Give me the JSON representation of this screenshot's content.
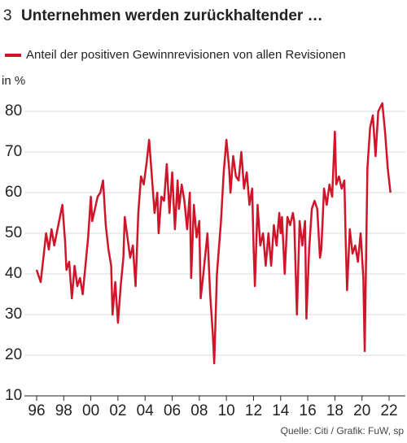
{
  "chart_data": {
    "type": "line",
    "number": "3",
    "title": "Unternehmen werden zurückhaltender …",
    "y_label": "in %",
    "source": "Quelle: Citi / Grafik: FuW, sp",
    "grid": true,
    "xlim": [
      1995.1,
      2023.2
    ],
    "ylim": [
      10,
      85
    ],
    "yticks": [
      10,
      20,
      30,
      40,
      50,
      60,
      70,
      80
    ],
    "xticks": [
      {
        "value": 1996,
        "label": "96"
      },
      {
        "value": 1998,
        "label": "98"
      },
      {
        "value": 2000,
        "label": "00"
      },
      {
        "value": 2002,
        "label": "02"
      },
      {
        "value": 2004,
        "label": "04"
      },
      {
        "value": 2006,
        "label": "06"
      },
      {
        "value": 2008,
        "label": "08"
      },
      {
        "value": 2010,
        "label": "10"
      },
      {
        "value": 2012,
        "label": "12"
      },
      {
        "value": 2014,
        "label": "14"
      },
      {
        "value": 2016,
        "label": "16"
      },
      {
        "value": 2018,
        "label": "18"
      },
      {
        "value": 2020,
        "label": "20"
      },
      {
        "value": 2022,
        "label": "22"
      }
    ],
    "x": [
      1996.0,
      1996.3,
      1996.7,
      1996.9,
      1997.1,
      1997.3,
      1997.6,
      1997.9,
      1998.1,
      1998.2,
      1998.4,
      1998.6,
      1998.8,
      1999.0,
      1999.2,
      1999.4,
      1999.6,
      1999.8,
      2000.0,
      2000.1,
      2000.3,
      2000.5,
      2000.7,
      2000.9,
      2001.1,
      2001.3,
      2001.5,
      2001.6,
      2001.8,
      2002.0,
      2002.2,
      2002.4,
      2002.5,
      2002.7,
      2002.9,
      2003.1,
      2003.3,
      2003.5,
      2003.7,
      2003.9,
      2004.1,
      2004.3,
      2004.5,
      2004.7,
      2004.9,
      2005.0,
      2005.2,
      2005.4,
      2005.6,
      2005.8,
      2006.0,
      2006.2,
      2006.4,
      2006.5,
      2006.7,
      2006.9,
      2007.1,
      2007.3,
      2007.4,
      2007.6,
      2007.8,
      2008.0,
      2008.1,
      2008.3,
      2008.6,
      2008.8,
      2009.0,
      2009.1,
      2009.3,
      2009.6,
      2009.8,
      2010.0,
      2010.2,
      2010.3,
      2010.5,
      2010.7,
      2010.9,
      2011.1,
      2011.3,
      2011.5,
      2011.7,
      2011.9,
      2012.0,
      2012.1,
      2012.3,
      2012.5,
      2012.7,
      2012.9,
      2013.1,
      2013.3,
      2013.5,
      2013.7,
      2013.9,
      2014.0,
      2014.1,
      2014.3,
      2014.5,
      2014.7,
      2014.9,
      2015.0,
      2015.2,
      2015.4,
      2015.6,
      2015.8,
      2015.9,
      2016.1,
      2016.3,
      2016.5,
      2016.7,
      2016.9,
      2017.0,
      2017.2,
      2017.4,
      2017.6,
      2017.8,
      2018.0,
      2018.1,
      2018.3,
      2018.5,
      2018.7,
      2018.8,
      2018.9,
      2019.1,
      2019.3,
      2019.5,
      2019.7,
      2019.9,
      2020.1,
      2020.2,
      2020.4,
      2020.6,
      2020.8,
      2021.0,
      2021.2,
      2021.5,
      2021.7,
      2021.9,
      2022.1
    ],
    "series": [
      {
        "name": "Anteil der positiven Gewinnrevisionen von allen Revisionen",
        "color": "#d0152a",
        "values": [
          41,
          38,
          50,
          46,
          51,
          47,
          52,
          57,
          48,
          41,
          43,
          34,
          42,
          37,
          39,
          35,
          42,
          49,
          59,
          53,
          56,
          59,
          60,
          63,
          52,
          46,
          42,
          30,
          38,
          28,
          37,
          44,
          54,
          49,
          44,
          47,
          37,
          55,
          64,
          62,
          67,
          73,
          64,
          55,
          60,
          50,
          59,
          58,
          67,
          55,
          65,
          51,
          63,
          56,
          62,
          58,
          51,
          60,
          39,
          57,
          49,
          53,
          34,
          40,
          50,
          35,
          25,
          18,
          40,
          53,
          65,
          73,
          66,
          60,
          69,
          64,
          63,
          70,
          61,
          65,
          57,
          61,
          47,
          37,
          57,
          47,
          50,
          42,
          50,
          42,
          52,
          47,
          55,
          50,
          54,
          40,
          54,
          52,
          55,
          53,
          30,
          53,
          47,
          53,
          29,
          46,
          56,
          58,
          56,
          44,
          46,
          61,
          57,
          62,
          59,
          75,
          62,
          64,
          61,
          63,
          48,
          36,
          51,
          45,
          47,
          43,
          50,
          39,
          21,
          66,
          76,
          79,
          69,
          80,
          82,
          75,
          66,
          60
        ]
      }
    ]
  }
}
